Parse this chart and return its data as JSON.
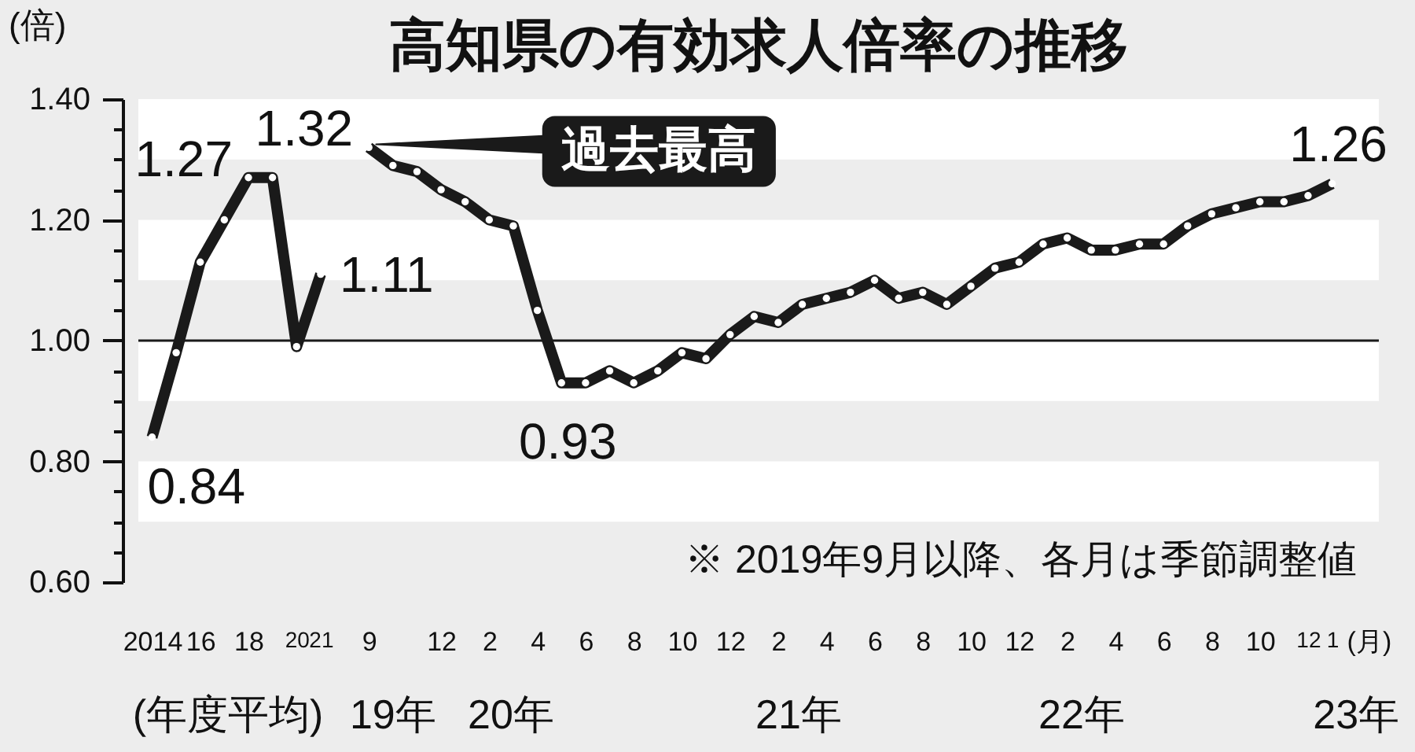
{
  "chart_data": {
    "type": "line",
    "title": "高知県の有効求人倍率の推移",
    "ylabel": "(倍)",
    "xlabel": "(月)",
    "categories": [
      "2014",
      null,
      "16",
      null,
      "18",
      null,
      "20",
      "21",
      null,
      "9",
      null,
      null,
      "12",
      null,
      "2",
      null,
      "4",
      null,
      "6",
      null,
      "8",
      null,
      "10",
      null,
      "12",
      null,
      "2",
      null,
      "4",
      null,
      "6",
      null,
      "8",
      null,
      "10",
      null,
      "12",
      null,
      "2",
      null,
      "4",
      null,
      "6",
      null,
      "8",
      null,
      "10",
      null,
      "12",
      "1"
    ],
    "values": [
      0.84,
      0.98,
      1.13,
      1.2,
      1.27,
      1.27,
      0.99,
      1.11,
      null,
      1.32,
      1.29,
      1.28,
      1.25,
      1.23,
      1.2,
      1.19,
      1.05,
      0.93,
      0.93,
      0.95,
      0.93,
      0.95,
      0.98,
      0.97,
      1.01,
      1.04,
      1.03,
      1.06,
      1.07,
      1.08,
      1.1,
      1.07,
      1.08,
      1.06,
      1.09,
      1.12,
      1.13,
      1.16,
      1.17,
      1.15,
      1.15,
      1.16,
      1.16,
      1.19,
      1.21,
      1.22,
      1.23,
      1.23,
      1.24,
      1.26
    ],
    "value_labels": [
      "0.84",
      null,
      null,
      null,
      "1.27",
      null,
      null,
      "1.11",
      null,
      "1.32",
      null,
      null,
      null,
      null,
      null,
      null,
      null,
      "0.93",
      null,
      null,
      null,
      null,
      null,
      null,
      null,
      null,
      null,
      null,
      null,
      null,
      null,
      null,
      null,
      null,
      null,
      null,
      null,
      null,
      null,
      null,
      null,
      null,
      null,
      null,
      null,
      null,
      null,
      null,
      null,
      "1.26"
    ],
    "color": "#1a1a1a",
    "marker": "circle",
    "line_style": "solid",
    "ylim": [
      0.6,
      1.4
    ],
    "yticks": [
      {
        "value": 0.6,
        "label": "0.60"
      },
      {
        "value": 0.65,
        "label": null
      },
      {
        "value": 0.7,
        "label": null
      },
      {
        "value": 0.75,
        "label": null
      },
      {
        "value": 0.8,
        "label": "0.80"
      },
      {
        "value": 0.85,
        "label": null
      },
      {
        "value": 0.9,
        "label": null
      },
      {
        "value": 0.95,
        "label": null
      },
      {
        "value": 1.0,
        "label": "1.00"
      },
      {
        "value": 1.05,
        "label": null
      },
      {
        "value": 1.1,
        "label": null
      },
      {
        "value": 1.15,
        "label": null
      },
      {
        "value": 1.2,
        "label": "1.20"
      },
      {
        "value": 1.25,
        "label": null
      },
      {
        "value": 1.3,
        "label": null
      },
      {
        "value": 1.35,
        "label": null
      },
      {
        "value": 1.4,
        "label": "1.40"
      }
    ],
    "ref_lines": [
      {
        "axis": "y",
        "value": 1.0,
        "color": "#1a1a1a"
      }
    ],
    "bands": [
      {
        "axis": "y",
        "from": 1.3,
        "to": 1.4,
        "color": "#ffffff"
      },
      {
        "axis": "y",
        "from": 1.1,
        "to": 1.2,
        "color": "#ffffff"
      },
      {
        "axis": "y",
        "from": 0.9,
        "to": 1.0,
        "color": "#ffffff"
      },
      {
        "axis": "y",
        "from": 0.7,
        "to": 0.8,
        "color": "#ffffff"
      }
    ],
    "annotations": [
      {
        "text": "過去最高",
        "x": "9",
        "y": 1.32
      },
      "(年度平均)",
      "19年",
      "20年",
      "21年",
      "22年",
      "23年",
      "※ 2019年9月以降、各月は季節調整値"
    ]
  }
}
